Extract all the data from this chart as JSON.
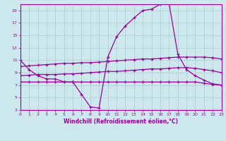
{
  "bg_color": "#cce8ec",
  "grid_color": "#aacccc",
  "line_color": "#990099",
  "title": "Windchill (Refroidissement éolien,°C)",
  "xlim": [
    0,
    23
  ],
  "ylim": [
    3,
    20
  ],
  "yticks": [
    3,
    5,
    7,
    9,
    11,
    13,
    15,
    17,
    19
  ],
  "xticks": [
    0,
    1,
    2,
    3,
    4,
    5,
    6,
    7,
    8,
    9,
    10,
    11,
    12,
    13,
    14,
    15,
    16,
    17,
    18,
    19,
    20,
    21,
    22,
    23
  ],
  "line1_x": [
    0,
    1,
    2,
    3,
    4,
    5,
    6,
    7,
    8,
    9,
    10,
    11,
    12,
    13,
    14,
    15,
    16,
    17,
    18,
    19,
    20,
    21,
    22,
    23
  ],
  "line1_y": [
    11.0,
    9.5,
    8.5,
    8.0,
    8.0,
    7.5,
    7.5,
    5.5,
    3.5,
    3.3,
    11.5,
    14.8,
    16.5,
    17.8,
    19.0,
    19.2,
    20.0,
    20.2,
    12.0,
    9.5,
    8.5,
    7.8,
    7.2,
    7.0
  ],
  "line2_x": [
    0,
    1,
    2,
    3,
    4,
    5,
    6,
    7,
    8,
    9,
    10,
    11,
    12,
    13,
    14,
    15,
    16,
    17,
    18,
    19,
    20,
    21,
    22,
    23
  ],
  "line2_y": [
    10.0,
    10.1,
    10.2,
    10.3,
    10.4,
    10.5,
    10.5,
    10.6,
    10.6,
    10.7,
    10.8,
    10.9,
    11.0,
    11.1,
    11.2,
    11.2,
    11.3,
    11.4,
    11.5,
    11.5,
    11.5,
    11.5,
    11.4,
    11.2
  ],
  "line3_x": [
    0,
    1,
    2,
    3,
    4,
    5,
    6,
    7,
    8,
    9,
    10,
    11,
    12,
    13,
    14,
    15,
    16,
    17,
    18,
    19,
    20,
    21,
    22,
    23
  ],
  "line3_y": [
    8.5,
    8.6,
    8.7,
    8.7,
    8.7,
    8.8,
    8.8,
    8.9,
    9.0,
    9.1,
    9.2,
    9.2,
    9.3,
    9.4,
    9.5,
    9.6,
    9.6,
    9.7,
    9.8,
    9.8,
    9.7,
    9.5,
    9.3,
    9.0
  ],
  "line4_x": [
    0,
    1,
    2,
    3,
    4,
    5,
    6,
    7,
    8,
    9,
    10,
    11,
    12,
    13,
    14,
    15,
    16,
    17,
    18,
    19,
    20,
    21,
    22,
    23
  ],
  "line4_y": [
    7.5,
    7.5,
    7.5,
    7.5,
    7.5,
    7.5,
    7.5,
    7.5,
    7.5,
    7.5,
    7.5,
    7.5,
    7.5,
    7.5,
    7.5,
    7.5,
    7.5,
    7.5,
    7.5,
    7.5,
    7.5,
    7.3,
    7.1,
    7.0
  ]
}
